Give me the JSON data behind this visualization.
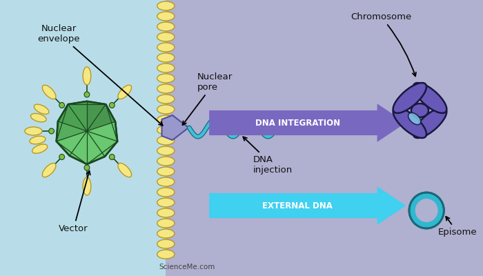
{
  "bg_left_color": "#b8dde8",
  "bg_right_color": "#b0b0d0",
  "envelope_color": "#f5e882",
  "envelope_outline": "#b89820",
  "vector_color1": "#6ac870",
  "vector_color2": "#3a8840",
  "vector_color3": "#2a6830",
  "vector_outline": "#1a4820",
  "pore_color": "#9898cc",
  "pore_outline": "#5050a0",
  "dna_wave_color": "#40c0d8",
  "dna_wave_outline": "#1a6878",
  "arrow1_color": "#7868c0",
  "arrow2_color": "#40d0f0",
  "arrow1_text": "DNA INTEGRATION",
  "arrow2_text": "EXTERNAL DNA",
  "label_nuclear_envelope": "Nuclear\nenvelope",
  "label_nuclear_pore": "Nuclear\npore",
  "label_vector": "Vector",
  "label_dna_injection": "DNA\ninjection",
  "label_chromosome": "Chromosome",
  "label_episome": "Episome",
  "watermark": "ScienceMe.com",
  "chrom_color": "#6858b8",
  "chrom_outline": "#181840",
  "chrom_centromere": "#80c8e8",
  "episome_color": "#30b8d0",
  "episome_outline": "#186878",
  "spike_color": "#f5e882",
  "spike_outline": "#b89820",
  "connector_color": "#80c040",
  "connector_outline": "#1a4820"
}
